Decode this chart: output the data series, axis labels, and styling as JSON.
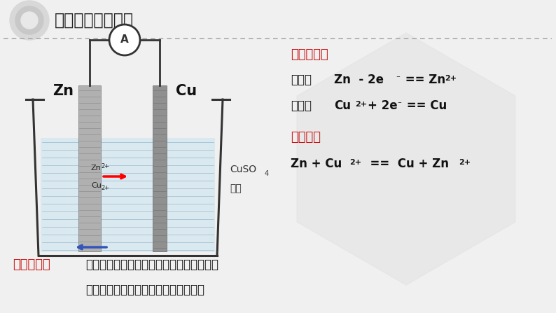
{
  "title": "原电池的工作原理",
  "bg_color": "#f0f0f0",
  "title_color": "#222222",
  "red_color": "#cc1111",
  "black_color": "#111111",
  "electrode_reaction_title": "电极反应：",
  "neg_label": "负极：",
  "pos_label": "正极：",
  "total_reaction_title": "总反应：",
  "experiment_label": "实验现象：",
  "experiment_text1": "锌片逐渐溶解，铜片上红色固体质量增加，",
  "experiment_text2": "溶液颜色变浅，电流计指针发生偏转。",
  "zn_label": "Zn",
  "cu_label": "Cu",
  "ammeter_label": "A",
  "cuso4_line1": "CuSO",
  "cuso4_line2": "溶液",
  "hex_color": "#e0e0e0",
  "beaker_color": "#333333",
  "liquid_color": "#cce4f0",
  "zn_electrode_color": "#b0b0b0",
  "cu_electrode_color": "#909090",
  "wire_color": "#333333",
  "dashed_color": "#aaaaaa"
}
